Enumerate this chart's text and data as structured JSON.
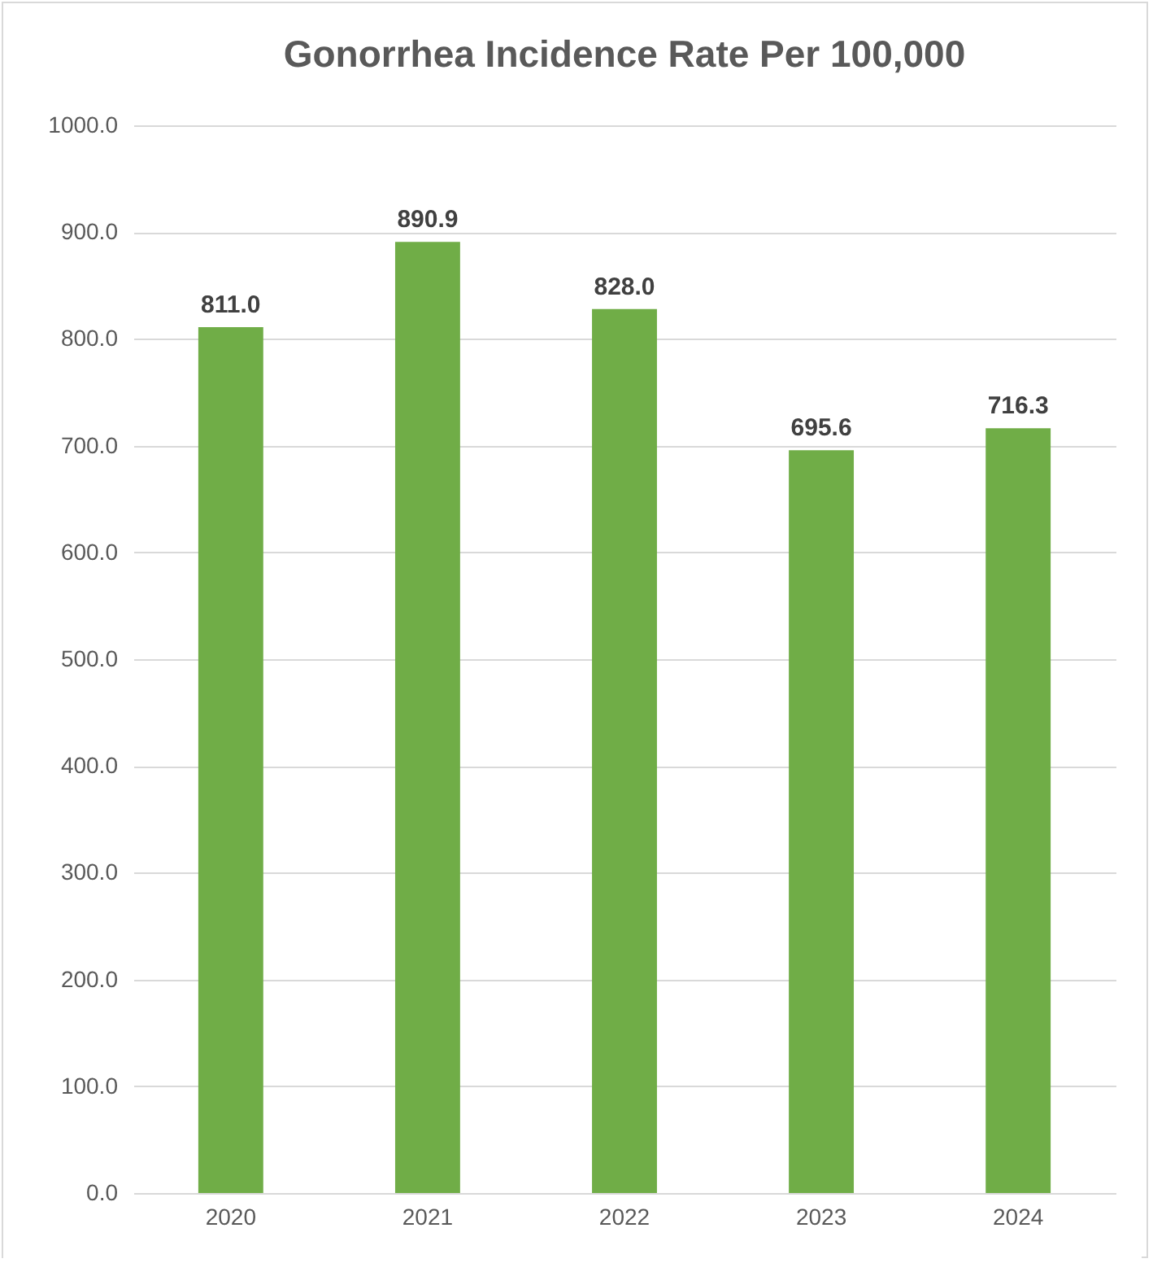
{
  "chart_data": {
    "type": "bar",
    "title": "Gonorrhea Incidence Rate Per 100,000",
    "categories": [
      "2020",
      "2021",
      "2022",
      "2023",
      "2024"
    ],
    "values": [
      811.0,
      890.9,
      828.0,
      695.6,
      716.3
    ],
    "value_labels": [
      "811.0",
      "890.9",
      "828.0",
      "695.6",
      "716.3"
    ],
    "color": "#70ad47",
    "ylim": [
      0,
      1000
    ],
    "yticks": [
      {
        "value": 0,
        "label": "0.0"
      },
      {
        "value": 100,
        "label": "100.0"
      },
      {
        "value": 200,
        "label": "200.0"
      },
      {
        "value": 300,
        "label": "300.0"
      },
      {
        "value": 400,
        "label": "400.0"
      },
      {
        "value": 500,
        "label": "500.0"
      },
      {
        "value": 600,
        "label": "600.0"
      },
      {
        "value": 700,
        "label": "700.0"
      },
      {
        "value": 800,
        "label": "800.0"
      },
      {
        "value": 900,
        "label": "900.0"
      },
      {
        "value": 1000,
        "label": "1000.0"
      }
    ],
    "grid": "y"
  }
}
